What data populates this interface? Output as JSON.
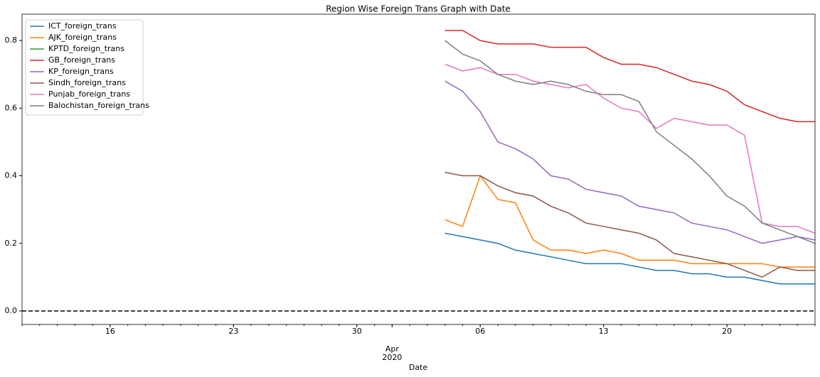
{
  "chart_data": {
    "type": "line",
    "title": "Region Wise Foreign Trans Graph with Date",
    "xlabel": "Date",
    "x": [
      "2020-04-04",
      "2020-04-05",
      "2020-04-06",
      "2020-04-07",
      "2020-04-08",
      "2020-04-09",
      "2020-04-10",
      "2020-04-11",
      "2020-04-12",
      "2020-04-13",
      "2020-04-14",
      "2020-04-15",
      "2020-04-16",
      "2020-04-17",
      "2020-04-18",
      "2020-04-19",
      "2020-04-20",
      "2020-04-21",
      "2020-04-22",
      "2020-04-23",
      "2020-04-24",
      "2020-04-25"
    ],
    "series": [
      {
        "name": "ICT_foreign_trans",
        "color": "#1f77b4",
        "values": [
          0.23,
          0.22,
          0.21,
          0.2,
          0.18,
          0.17,
          0.16,
          0.15,
          0.14,
          0.14,
          0.14,
          0.13,
          0.12,
          0.12,
          0.11,
          0.11,
          0.1,
          0.1,
          0.09,
          0.08,
          0.08,
          0.08
        ]
      },
      {
        "name": "AJK_foreign_trans",
        "color": "#ff7f0e",
        "values": [
          0.27,
          0.25,
          0.4,
          0.33,
          0.32,
          0.21,
          0.18,
          0.18,
          0.17,
          0.18,
          0.17,
          0.15,
          0.15,
          0.15,
          0.14,
          0.14,
          0.14,
          0.14,
          0.14,
          0.13,
          0.13,
          0.13
        ]
      },
      {
        "name": "KPTD_foreign_trans",
        "color": "#2ca02c",
        "values": [
          null,
          null,
          null,
          null,
          null,
          null,
          null,
          null,
          null,
          null,
          null,
          null,
          null,
          null,
          null,
          null,
          null,
          null,
          null,
          null,
          null,
          null
        ]
      },
      {
        "name": "GB_foreign_trans",
        "color": "#d62728",
        "values": [
          0.83,
          0.83,
          0.8,
          0.79,
          0.79,
          0.79,
          0.78,
          0.78,
          0.78,
          0.75,
          0.73,
          0.73,
          0.72,
          0.7,
          0.68,
          0.67,
          0.65,
          0.61,
          0.59,
          0.57,
          0.56,
          0.56
        ]
      },
      {
        "name": "KP_foreign_trans",
        "color": "#9467bd",
        "values": [
          0.68,
          0.65,
          0.59,
          0.5,
          0.48,
          0.45,
          0.4,
          0.39,
          0.36,
          0.35,
          0.34,
          0.31,
          0.3,
          0.29,
          0.26,
          0.25,
          0.24,
          0.22,
          0.2,
          0.21,
          0.22,
          0.21
        ]
      },
      {
        "name": "Sindh_foreign_trans",
        "color": "#8c564b",
        "values": [
          0.41,
          0.4,
          0.4,
          0.37,
          0.35,
          0.34,
          0.31,
          0.29,
          0.26,
          0.25,
          0.24,
          0.23,
          0.21,
          0.17,
          0.16,
          0.15,
          0.14,
          0.12,
          0.1,
          0.13,
          0.12,
          0.12
        ]
      },
      {
        "name": "Punjab_foreign_trans",
        "color": "#e377c2",
        "values": [
          0.73,
          0.71,
          0.72,
          0.7,
          0.7,
          0.68,
          0.67,
          0.66,
          0.67,
          0.63,
          0.6,
          0.59,
          0.54,
          0.57,
          0.56,
          0.55,
          0.55,
          0.52,
          0.26,
          0.25,
          0.25,
          0.23
        ]
      },
      {
        "name": "Balochistan_foreign_trans",
        "color": "#7f7f7f",
        "values": [
          0.8,
          0.76,
          0.74,
          0.7,
          0.68,
          0.67,
          0.68,
          0.67,
          0.65,
          0.64,
          0.64,
          0.62,
          0.53,
          0.49,
          0.45,
          0.4,
          0.34,
          0.31,
          0.26,
          0.24,
          0.22,
          0.2
        ]
      }
    ],
    "xlim": [
      "2020-03-11",
      "2020-04-25"
    ],
    "xticks": [
      {
        "value": "2020-03-16",
        "label": "16"
      },
      {
        "value": "2020-03-23",
        "label": "23"
      },
      {
        "value": "2020-03-30",
        "label": "30"
      },
      {
        "value": "2020-04-01",
        "label": "Apr\n2020"
      },
      {
        "value": "2020-04-06",
        "label": "06"
      },
      {
        "value": "2020-04-13",
        "label": "13"
      },
      {
        "value": "2020-04-20",
        "label": "20"
      }
    ],
    "ylim": [
      -0.04,
      0.878
    ],
    "yticks": [
      {
        "value": 0,
        "label": "0.0"
      },
      0.2,
      0.4,
      0.6,
      0.8
    ],
    "hline": 0,
    "legend": "upper left",
    "grid": false
  }
}
